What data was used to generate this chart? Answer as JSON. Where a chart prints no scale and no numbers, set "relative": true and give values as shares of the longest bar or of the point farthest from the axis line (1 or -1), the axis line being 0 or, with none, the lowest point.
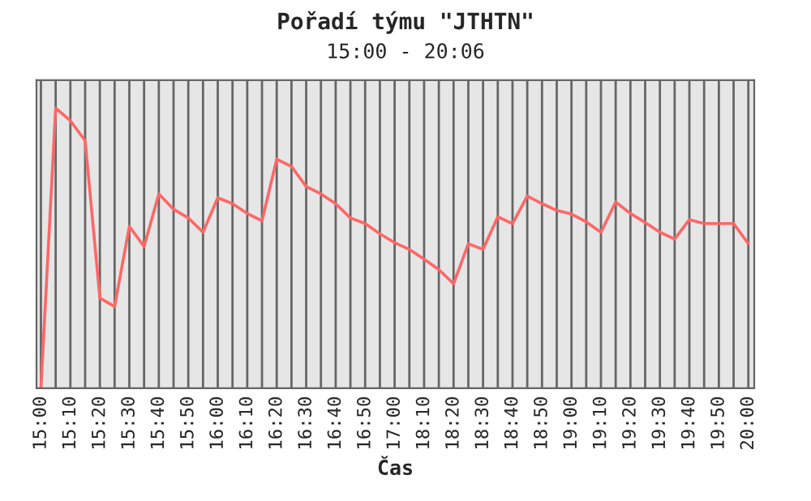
{
  "chart_data": {
    "type": "line",
    "title": "Pořadí týmu \"JTHTN\"",
    "subtitle": "15:00 - 20:06",
    "xlabel": "Čas",
    "relative": true,
    "grid": "x",
    "legend": false,
    "marker": "none",
    "line_style": "solid",
    "categories": [
      "15:00",
      null,
      "15:10",
      null,
      "15:20",
      null,
      "15:30",
      null,
      "15:40",
      null,
      "15:50",
      null,
      "16:00",
      null,
      "16:10",
      null,
      "16:20",
      null,
      "16:30",
      null,
      "16:40",
      null,
      "16:50",
      null,
      "17:00",
      null,
      "18:10",
      null,
      "18:20",
      null,
      "18:30",
      null,
      "18:40",
      null,
      "18:50",
      null,
      "19:00",
      null,
      "19:10",
      null,
      "19:20",
      null,
      "19:30",
      null,
      "19:40",
      null,
      "19:50",
      null,
      "20:00"
    ],
    "series": [
      {
        "color": "#ff6666",
        "values": [
          0,
          1.0,
          0.955,
          0.884,
          0.322,
          0.292,
          0.578,
          0.506,
          0.694,
          0.639,
          0.608,
          0.557,
          0.68,
          0.659,
          0.624,
          0.598,
          0.818,
          0.792,
          0.72,
          0.694,
          0.659,
          0.608,
          0.588,
          0.551,
          0.52,
          0.496,
          0.461,
          0.424,
          0.373,
          0.516,
          0.496,
          0.612,
          0.588,
          0.686,
          0.659,
          0.635,
          0.622,
          0.594,
          0.557,
          0.665,
          0.624,
          0.592,
          0.557,
          0.533,
          0.602,
          0.588,
          0.588,
          0.588,
          0.516
        ]
      }
    ]
  }
}
